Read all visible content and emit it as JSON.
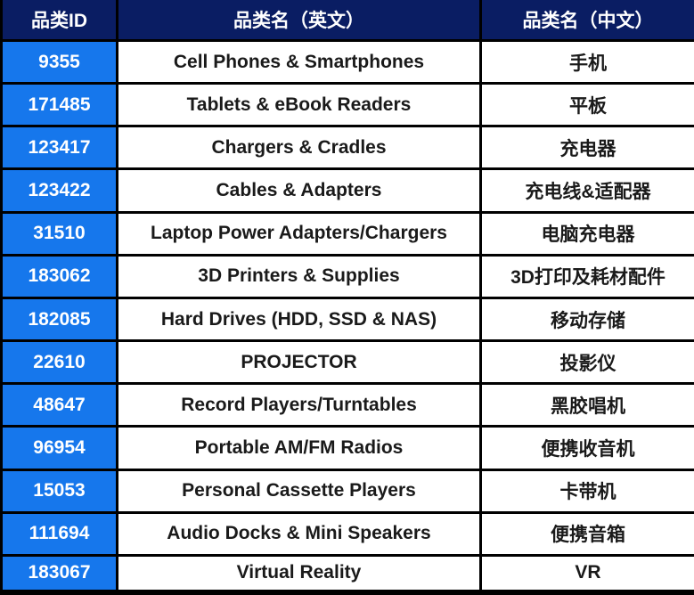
{
  "colors": {
    "header_bg": "#0A1D63",
    "id_cell_bg": "#1677EC",
    "border": "#000000",
    "header_text": "#FFFFFF",
    "body_text": "#1A1A1A"
  },
  "table": {
    "headers": [
      "品类ID",
      "品类名（英文）",
      "品类名（中文）"
    ],
    "rows": [
      {
        "id": "9355",
        "en": "Cell Phones & Smartphones",
        "zh": "手机"
      },
      {
        "id": "171485",
        "en": "Tablets & eBook Readers",
        "zh": "平板"
      },
      {
        "id": "123417",
        "en": "Chargers & Cradles",
        "zh": "充电器"
      },
      {
        "id": "123422",
        "en": "Cables & Adapters",
        "zh": "充电线&适配器"
      },
      {
        "id": "31510",
        "en": "Laptop Power Adapters/Chargers",
        "zh": "电脑充电器"
      },
      {
        "id": "183062",
        "en": "3D Printers & Supplies",
        "zh": "3D打印及耗材配件"
      },
      {
        "id": "182085",
        "en": "Hard Drives (HDD, SSD & NAS)",
        "zh": "移动存储"
      },
      {
        "id": "22610",
        "en": "PROJECTOR",
        "zh": "投影仪"
      },
      {
        "id": "48647",
        "en": "Record Players/Turntables",
        "zh": "黑胶唱机"
      },
      {
        "id": "96954",
        "en": "Portable AM/FM Radios",
        "zh": "便携收音机"
      },
      {
        "id": "15053",
        "en": "Personal Cassette Players",
        "zh": "卡带机"
      },
      {
        "id": "111694",
        "en": "Audio Docks & Mini Speakers",
        "zh": "便携音箱"
      },
      {
        "id": "183067",
        "en": "Virtual Reality",
        "zh": "VR"
      }
    ]
  }
}
